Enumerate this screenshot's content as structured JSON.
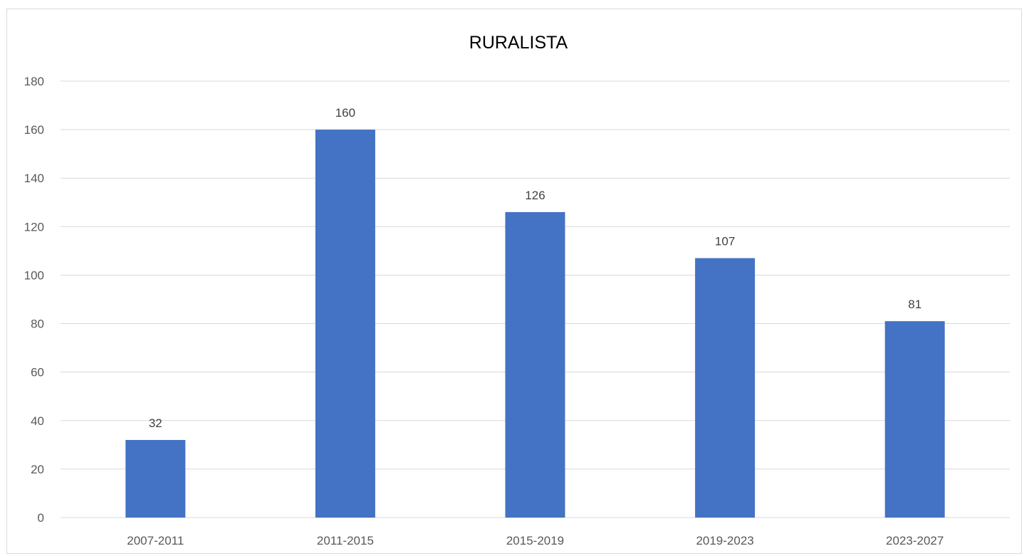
{
  "chart_data": {
    "type": "bar",
    "title": "RURALISTA",
    "categories": [
      "2007-2011",
      "2011-2015",
      "2015-2019",
      "2019-2023",
      "2023-2027"
    ],
    "values": [
      32,
      160,
      126,
      107,
      81
    ],
    "data_labels": [
      "32",
      "160",
      "126",
      "107",
      "81"
    ],
    "ylim": [
      0,
      180
    ],
    "yticks": [
      0,
      20,
      40,
      60,
      80,
      100,
      120,
      140,
      160,
      180
    ],
    "grid": true,
    "bar_color": "#4472c4",
    "legend": "none",
    "xlabel": "",
    "ylabel": ""
  }
}
